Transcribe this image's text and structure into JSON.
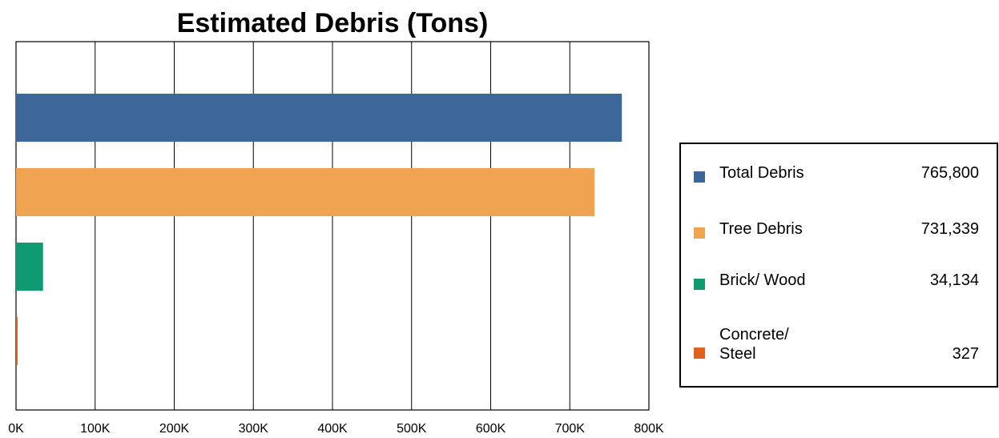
{
  "chart_data": {
    "type": "bar",
    "orientation": "horizontal",
    "title": "Estimated Debris (Tons)",
    "categories": [
      "Total Debris",
      "Tree Debris",
      "Brick/ Wood",
      "Concrete/ Steel"
    ],
    "values": [
      765800,
      731339,
      34134,
      327
    ],
    "value_labels": [
      "765,800",
      "731,339",
      "34,134",
      "327"
    ],
    "colors": [
      "#3d6699",
      "#f0a452",
      "#0f9a72",
      "#e06020"
    ],
    "xlim": [
      0,
      800000
    ],
    "xticks": [
      0,
      100000,
      200000,
      300000,
      400000,
      500000,
      600000,
      700000,
      800000
    ],
    "xtick_labels": [
      "0K",
      "100K",
      "200K",
      "300K",
      "400K",
      "500K",
      "600K",
      "700K",
      "800K"
    ],
    "grid": true,
    "legend_position": "right"
  }
}
